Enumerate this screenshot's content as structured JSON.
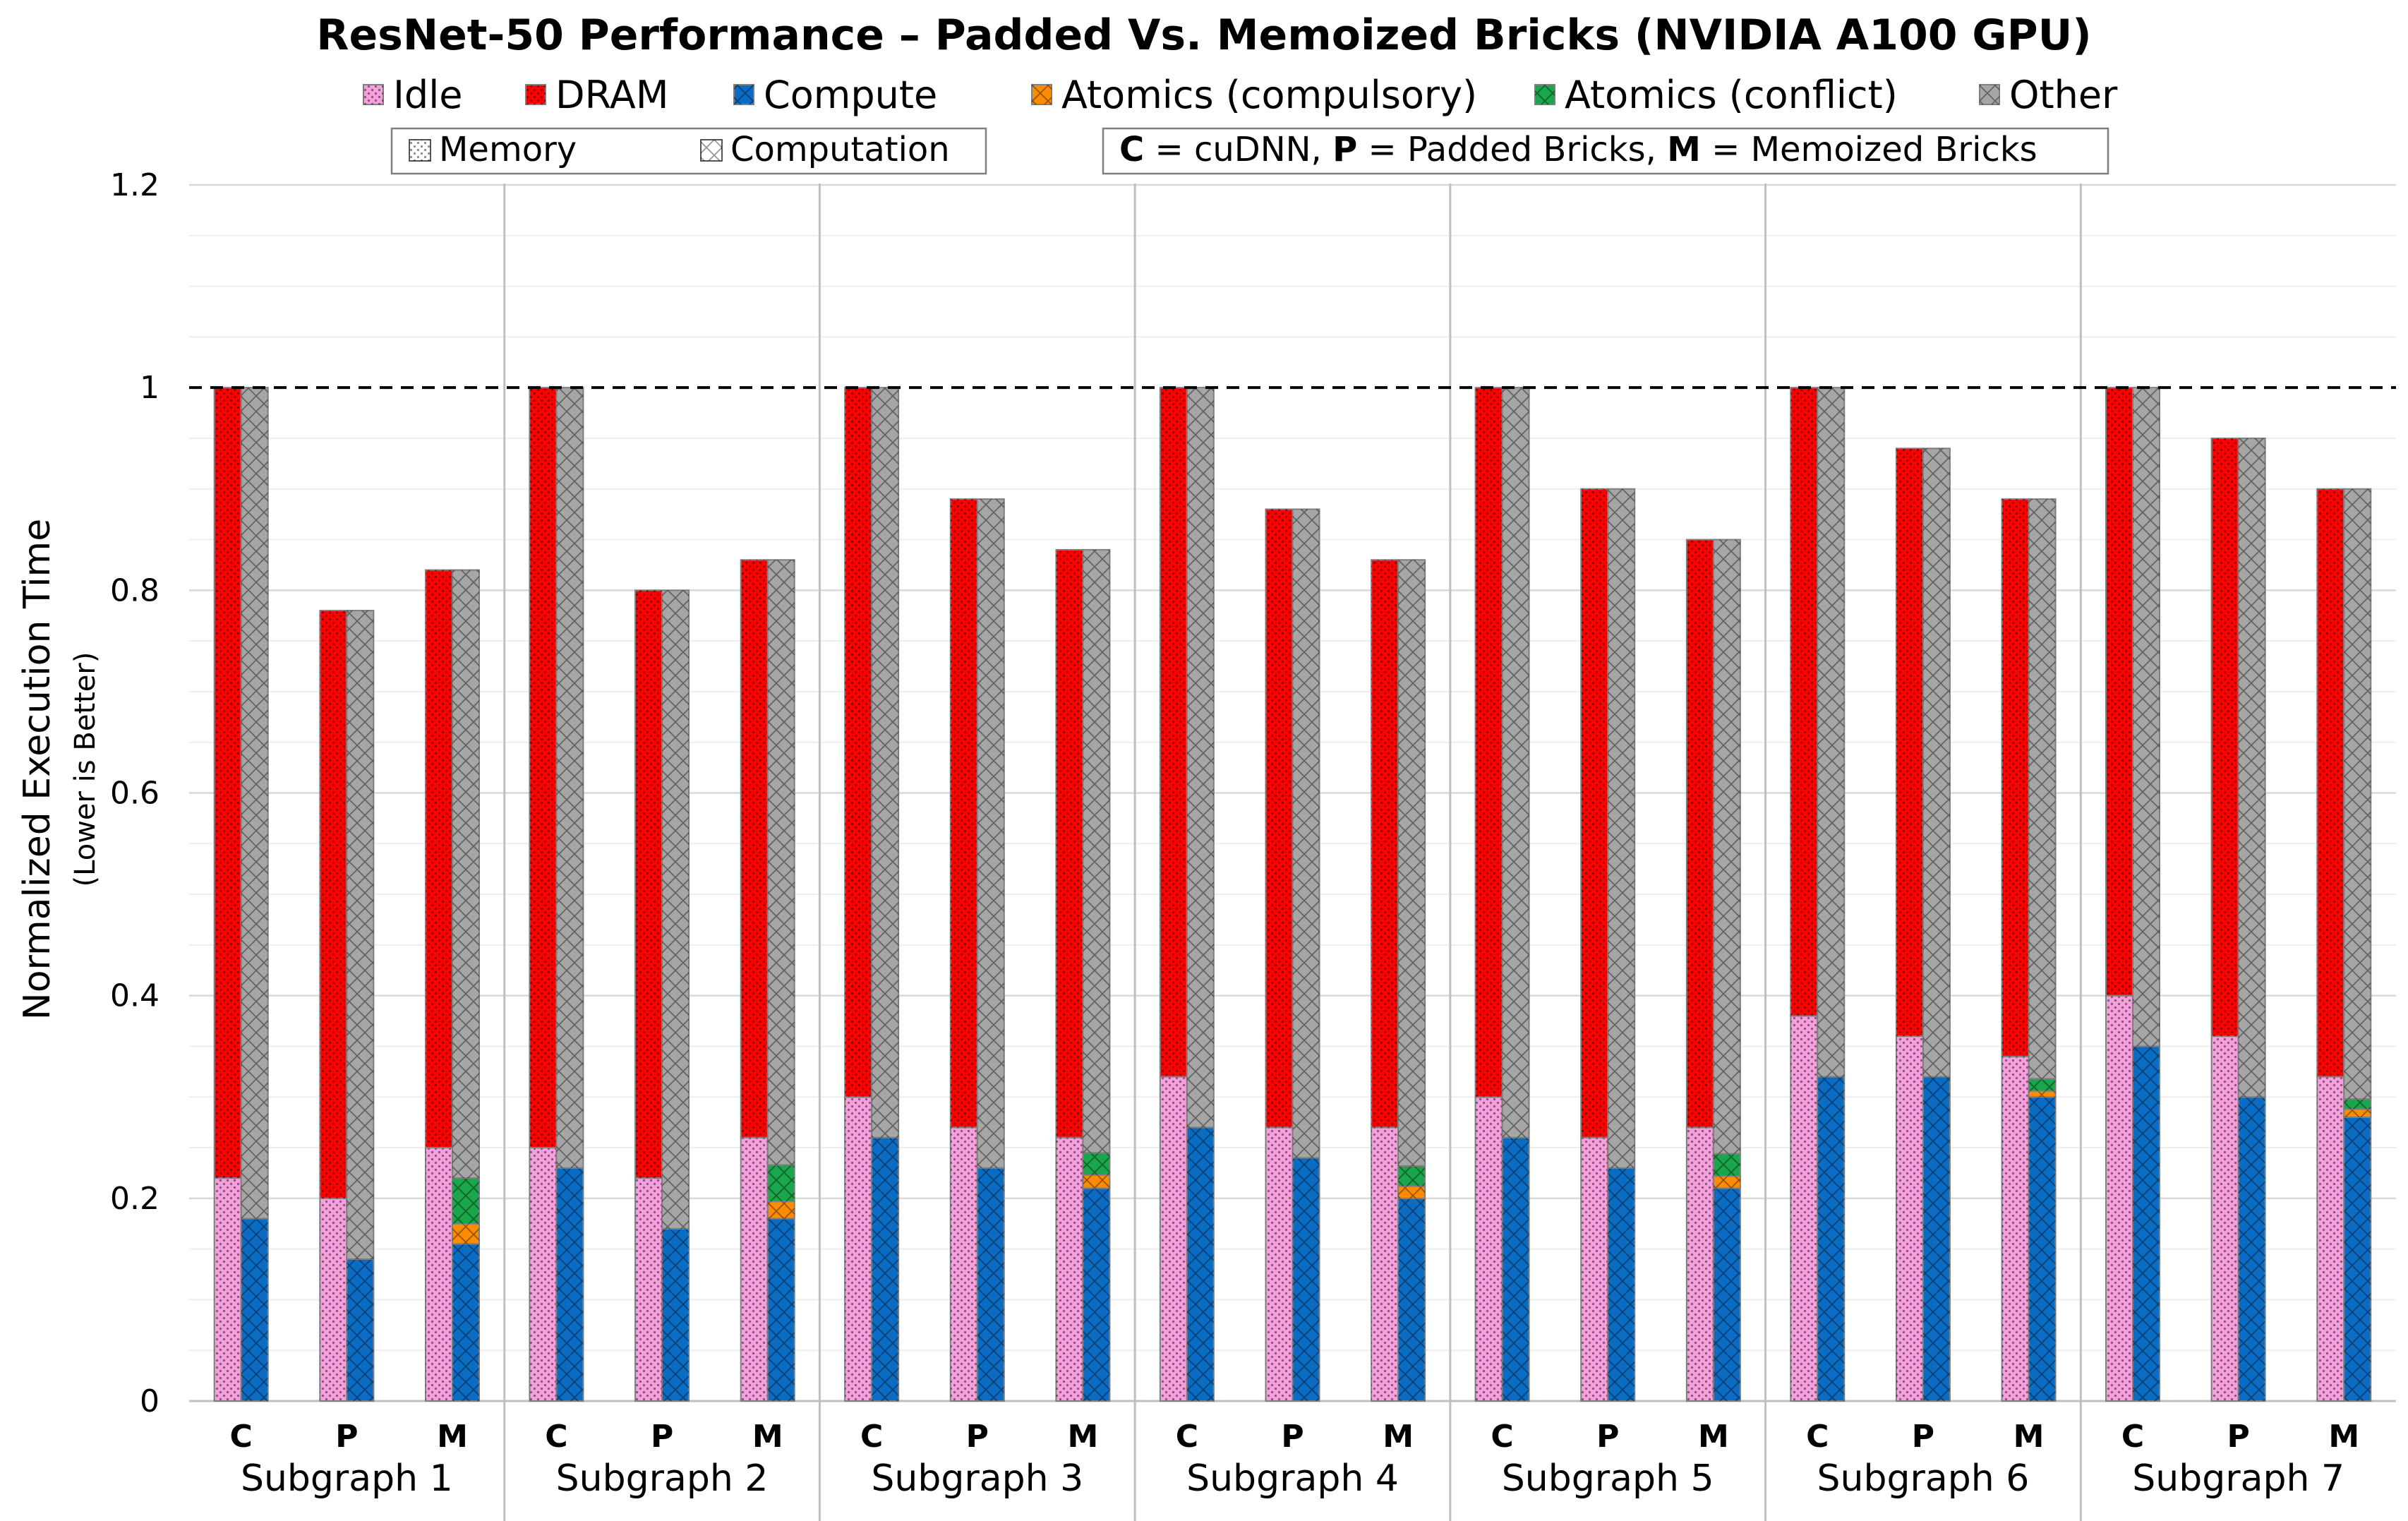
{
  "chart_data": {
    "type": "bar",
    "stacked": true,
    "title": "ResNet-50 Performance – Padded Vs. Memoized Bricks (NVIDIA A100 GPU)",
    "ylabel": "Normalized Execution Time",
    "ylabel_sub": "(Lower is Better)",
    "ylim": [
      0,
      1.2
    ],
    "yticks": [
      "0",
      "0.2",
      "0.4",
      "0.6",
      "0.8",
      "1",
      "1.2"
    ],
    "reference_line": 1,
    "legend": {
      "series": [
        {
          "name": "Idle",
          "color": "#f59fdc",
          "pattern": "dots"
        },
        {
          "name": "DRAM",
          "color": "#ff0000",
          "pattern": "dots"
        },
        {
          "name": "Compute",
          "color": "#0b6cc4",
          "pattern": "crosshatch"
        },
        {
          "name": "Atomics (compulsory)",
          "color": "#ff8c00",
          "pattern": "crosshatch"
        },
        {
          "name": "Atomics (conflict)",
          "color": "#1aa64a",
          "pattern": "crosshatch"
        },
        {
          "name": "Other",
          "color": "#a6a6a6",
          "pattern": "crosshatch"
        }
      ],
      "patterns": [
        {
          "name": "Memory",
          "pattern": "dots"
        },
        {
          "name": "Computation",
          "pattern": "crosshatch"
        }
      ],
      "key_parts": [
        {
          "b": "C",
          "t": " = cuDNN, "
        },
        {
          "b": "P",
          "t": " = Padded Bricks, "
        },
        {
          "b": "M",
          "t": " = Memoized Bricks"
        }
      ]
    },
    "groups": [
      {
        "name": "Subgraph 1",
        "bars": [
          {
            "label": "C",
            "memory": {
              "idle": 0.22,
              "dram": 0.78
            },
            "computation": {
              "compute": 0.18,
              "atomics_compulsory": 0,
              "atomics_conflict": 0,
              "other": 0.82
            }
          },
          {
            "label": "P",
            "memory": {
              "idle": 0.2,
              "dram": 0.58
            },
            "computation": {
              "compute": 0.14,
              "atomics_compulsory": 0,
              "atomics_conflict": 0,
              "other": 0.64
            }
          },
          {
            "label": "M",
            "memory": {
              "idle": 0.25,
              "dram": 0.57
            },
            "computation": {
              "compute": 0.155,
              "atomics_compulsory": 0.02,
              "atomics_conflict": 0.045,
              "other": 0.6
            }
          }
        ]
      },
      {
        "name": "Subgraph 2",
        "bars": [
          {
            "label": "C",
            "memory": {
              "idle": 0.25,
              "dram": 0.75
            },
            "computation": {
              "compute": 0.23,
              "atomics_compulsory": 0,
              "atomics_conflict": 0,
              "other": 0.77
            }
          },
          {
            "label": "P",
            "memory": {
              "idle": 0.22,
              "dram": 0.58
            },
            "computation": {
              "compute": 0.17,
              "atomics_compulsory": 0,
              "atomics_conflict": 0,
              "other": 0.63
            }
          },
          {
            "label": "M",
            "memory": {
              "idle": 0.26,
              "dram": 0.57
            },
            "computation": {
              "compute": 0.18,
              "atomics_compulsory": 0.017,
              "atomics_conflict": 0.036,
              "other": 0.597
            }
          }
        ]
      },
      {
        "name": "Subgraph 3",
        "bars": [
          {
            "label": "C",
            "memory": {
              "idle": 0.3,
              "dram": 0.7
            },
            "computation": {
              "compute": 0.26,
              "atomics_compulsory": 0,
              "atomics_conflict": 0,
              "other": 0.74
            }
          },
          {
            "label": "P",
            "memory": {
              "idle": 0.27,
              "dram": 0.62
            },
            "computation": {
              "compute": 0.23,
              "atomics_compulsory": 0,
              "atomics_conflict": 0,
              "other": 0.66
            }
          },
          {
            "label": "M",
            "memory": {
              "idle": 0.26,
              "dram": 0.58
            },
            "computation": {
              "compute": 0.21,
              "atomics_compulsory": 0.013,
              "atomics_conflict": 0.022,
              "other": 0.595
            }
          }
        ]
      },
      {
        "name": "Subgraph 4",
        "bars": [
          {
            "label": "C",
            "memory": {
              "idle": 0.32,
              "dram": 0.68
            },
            "computation": {
              "compute": 0.27,
              "atomics_compulsory": 0,
              "atomics_conflict": 0,
              "other": 0.73
            }
          },
          {
            "label": "P",
            "memory": {
              "idle": 0.27,
              "dram": 0.61
            },
            "computation": {
              "compute": 0.24,
              "atomics_compulsory": 0,
              "atomics_conflict": 0,
              "other": 0.64
            }
          },
          {
            "label": "M",
            "memory": {
              "idle": 0.27,
              "dram": 0.56
            },
            "computation": {
              "compute": 0.2,
              "atomics_compulsory": 0.012,
              "atomics_conflict": 0.02,
              "other": 0.598
            }
          }
        ]
      },
      {
        "name": "Subgraph 5",
        "bars": [
          {
            "label": "C",
            "memory": {
              "idle": 0.3,
              "dram": 0.7
            },
            "computation": {
              "compute": 0.26,
              "atomics_compulsory": 0,
              "atomics_conflict": 0,
              "other": 0.74
            }
          },
          {
            "label": "P",
            "memory": {
              "idle": 0.26,
              "dram": 0.64
            },
            "computation": {
              "compute": 0.23,
              "atomics_compulsory": 0,
              "atomics_conflict": 0,
              "other": 0.67
            }
          },
          {
            "label": "M",
            "memory": {
              "idle": 0.27,
              "dram": 0.58
            },
            "computation": {
              "compute": 0.21,
              "atomics_compulsory": 0.012,
              "atomics_conflict": 0.022,
              "other": 0.606
            }
          }
        ]
      },
      {
        "name": "Subgraph 6",
        "bars": [
          {
            "label": "C",
            "memory": {
              "idle": 0.38,
              "dram": 0.62
            },
            "computation": {
              "compute": 0.32,
              "atomics_compulsory": 0,
              "atomics_conflict": 0,
              "other": 0.68
            }
          },
          {
            "label": "P",
            "memory": {
              "idle": 0.36,
              "dram": 0.58
            },
            "computation": {
              "compute": 0.32,
              "atomics_compulsory": 0,
              "atomics_conflict": 0,
              "other": 0.62
            }
          },
          {
            "label": "M",
            "memory": {
              "idle": 0.34,
              "dram": 0.55
            },
            "computation": {
              "compute": 0.3,
              "atomics_compulsory": 0.006,
              "atomics_conflict": 0.012,
              "other": 0.572
            }
          }
        ]
      },
      {
        "name": "Subgraph 7",
        "bars": [
          {
            "label": "C",
            "memory": {
              "idle": 0.4,
              "dram": 0.6
            },
            "computation": {
              "compute": 0.35,
              "atomics_compulsory": 0,
              "atomics_conflict": 0,
              "other": 0.65
            }
          },
          {
            "label": "P",
            "memory": {
              "idle": 0.36,
              "dram": 0.59
            },
            "computation": {
              "compute": 0.3,
              "atomics_compulsory": 0,
              "atomics_conflict": 0,
              "other": 0.65
            }
          },
          {
            "label": "M",
            "memory": {
              "idle": 0.32,
              "dram": 0.58
            },
            "computation": {
              "compute": 0.28,
              "atomics_compulsory": 0.008,
              "atomics_conflict": 0.01,
              "other": 0.602
            }
          }
        ]
      }
    ]
  }
}
